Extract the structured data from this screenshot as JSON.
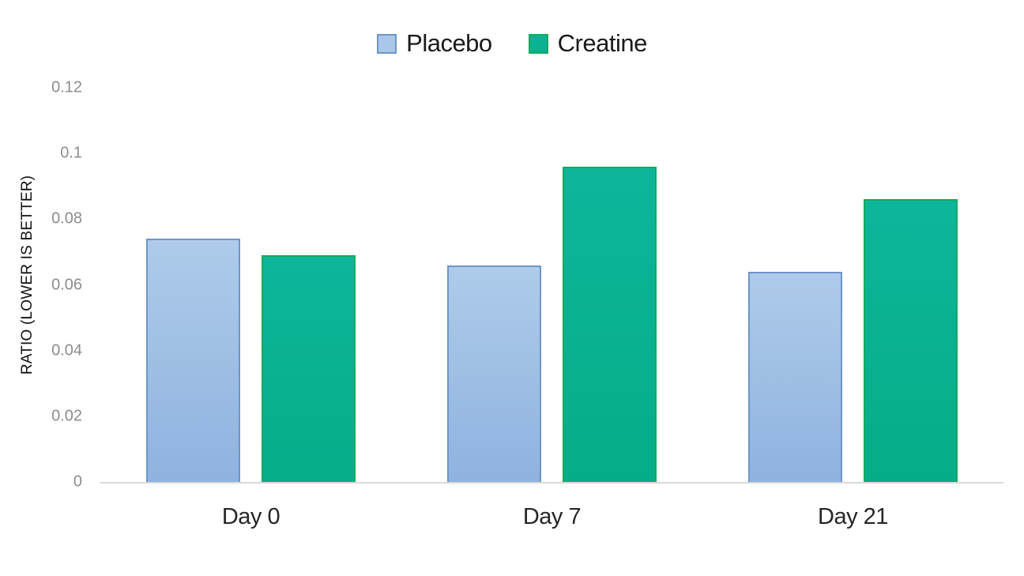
{
  "chart_data": {
    "type": "bar",
    "title": "",
    "categories": [
      "Day 0",
      "Day 7",
      "Day 21"
    ],
    "series": [
      {
        "name": "Placebo",
        "values": [
          0.074,
          0.066,
          0.064
        ],
        "fill": "#A9C7E9",
        "border": "#6E96C8"
      },
      {
        "name": "Creatine",
        "values": [
          0.069,
          0.096,
          0.086
        ],
        "fill": "#0AB292",
        "border": "#14AB5C"
      }
    ],
    "ylabel": "RATIO (LOWER IS BETTER)",
    "xlabel": "",
    "ylim": [
      0,
      0.12
    ],
    "yticks": [
      {
        "value": 0,
        "label": "0"
      },
      {
        "value": 0.02,
        "label": "0.02"
      },
      {
        "value": 0.04,
        "label": "0.04"
      },
      {
        "value": 0.06,
        "label": "0.06"
      },
      {
        "value": 0.08,
        "label": "0.08"
      },
      {
        "value": 0.1,
        "label": "0.1"
      },
      {
        "value": 0.12,
        "label": "0.12"
      }
    ],
    "legend_position": "top",
    "grid": false,
    "axis_line_color": "#D9D9D9",
    "tick_label_color": "#8C8C8C"
  }
}
